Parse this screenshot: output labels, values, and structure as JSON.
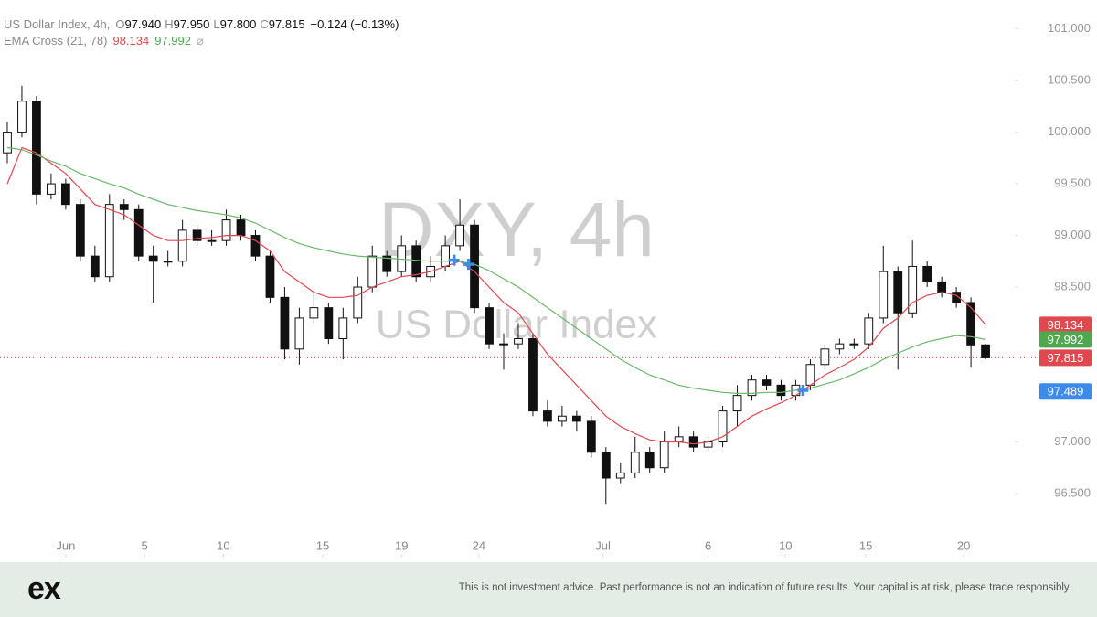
{
  "chart_data": {
    "type": "candlestick",
    "header": {
      "title": "US Dollar Index, 4h,",
      "o_label": "O",
      "open": "97.940",
      "h_label": "H",
      "high": "97.950",
      "l_label": "L",
      "low": "97.800",
      "c_label": "C",
      "close": "97.815",
      "change": "−0.124 (−0.13%)"
    },
    "indicator": {
      "name": "EMA Cross (21, 78)",
      "symbol": "⌀"
    },
    "watermark": {
      "symbol": "DXY, 4h",
      "name": "US Dollar Index"
    },
    "xlim": [
      -0.5,
      69
    ],
    "xticks": [
      {
        "value": 4.0,
        "label": "Jun"
      },
      {
        "value": 9.4,
        "label": "5"
      },
      {
        "value": 14.8,
        "label": "10"
      },
      {
        "value": 21.6,
        "label": "15"
      },
      {
        "value": 27.0,
        "label": "19"
      },
      {
        "value": 32.3,
        "label": "24"
      },
      {
        "value": 40.8,
        "label": "Jul"
      },
      {
        "value": 48.0,
        "label": "6"
      },
      {
        "value": 53.3,
        "label": "10"
      },
      {
        "value": 58.8,
        "label": "15"
      },
      {
        "value": 65.5,
        "label": "20"
      }
    ],
    "ylim": [
      95.88,
      101.28
    ],
    "yticks": [
      {
        "value": 96.5,
        "label": "96.500"
      },
      {
        "value": 97,
        "label": "97.000"
      },
      {
        "value": 98.5,
        "label": "98.500"
      },
      {
        "value": 99,
        "label": "99.000"
      },
      {
        "value": 99.5,
        "label": "99.500"
      },
      {
        "value": 100,
        "label": "100.000"
      },
      {
        "value": 100.5,
        "label": "100.500"
      },
      {
        "value": 101,
        "label": "101.000"
      }
    ],
    "up_color": "#ffffff",
    "down_color": "#111111",
    "ohlc": {
      "open": [
        99.8,
        100.0,
        100.3,
        99.4,
        99.5,
        99.3,
        98.8,
        98.6,
        99.3,
        99.25,
        98.8,
        98.75,
        98.75,
        99.05,
        98.95,
        98.95,
        99.15,
        99.0,
        98.8,
        98.4,
        97.9,
        98.2,
        98.3,
        98.0,
        98.2,
        98.5,
        98.8,
        98.65,
        98.9,
        98.6,
        98.7,
        98.9,
        99.1,
        98.3,
        97.95,
        97.95,
        98.0,
        97.3,
        97.2,
        97.25,
        97.2,
        96.9,
        96.65,
        96.7,
        96.9,
        96.75,
        97.0,
        97.05,
        96.95,
        97.0,
        97.3,
        97.45,
        97.6,
        97.55,
        97.45,
        97.55,
        97.75,
        97.9,
        97.95,
        97.95,
        98.2,
        98.65,
        98.25,
        98.7,
        98.55,
        98.45,
        98.35,
        97.94
      ],
      "high": [
        100.1,
        100.45,
        100.35,
        99.6,
        99.55,
        99.35,
        98.9,
        99.4,
        99.35,
        99.3,
        98.9,
        98.85,
        99.15,
        99.1,
        99.05,
        99.25,
        99.2,
        99.05,
        98.85,
        98.5,
        98.3,
        98.45,
        98.35,
        98.3,
        98.6,
        98.9,
        98.85,
        99.0,
        98.95,
        98.8,
        99.0,
        99.35,
        99.15,
        98.35,
        98.05,
        98.15,
        98.05,
        97.4,
        97.35,
        97.3,
        97.25,
        96.95,
        96.8,
        97.05,
        96.95,
        97.1,
        97.15,
        97.1,
        97.05,
        97.35,
        97.55,
        97.65,
        97.65,
        97.6,
        97.6,
        97.8,
        97.95,
        98.0,
        98.0,
        98.25,
        98.9,
        98.7,
        98.95,
        98.75,
        98.6,
        98.5,
        98.4,
        97.95
      ],
      "low": [
        99.7,
        99.95,
        99.3,
        99.35,
        99.25,
        98.75,
        98.55,
        98.55,
        99.15,
        98.75,
        98.35,
        98.7,
        98.7,
        98.9,
        98.9,
        98.9,
        98.95,
        98.75,
        98.35,
        97.8,
        97.75,
        98.15,
        97.95,
        97.8,
        98.15,
        98.45,
        98.6,
        98.6,
        98.55,
        98.55,
        98.65,
        98.85,
        98.25,
        97.9,
        97.7,
        97.9,
        97.25,
        97.15,
        97.15,
        97.1,
        96.85,
        96.4,
        96.6,
        96.65,
        96.7,
        96.7,
        96.95,
        96.9,
        96.9,
        96.95,
        97.15,
        97.4,
        97.5,
        97.4,
        97.4,
        97.5,
        97.7,
        97.85,
        97.9,
        97.9,
        98.15,
        97.7,
        98.2,
        98.5,
        98.4,
        98.3,
        97.72,
        97.8
      ],
      "close": [
        100.0,
        100.3,
        99.4,
        99.5,
        99.3,
        98.8,
        98.6,
        99.3,
        99.25,
        98.8,
        98.75,
        98.75,
        99.05,
        98.95,
        98.95,
        99.15,
        99.0,
        98.8,
        98.4,
        97.9,
        98.2,
        98.3,
        98.0,
        98.2,
        98.5,
        98.8,
        98.65,
        98.9,
        98.6,
        98.7,
        98.9,
        99.1,
        98.3,
        97.95,
        97.95,
        98.0,
        97.3,
        97.2,
        97.25,
        97.2,
        96.9,
        96.65,
        96.7,
        96.9,
        96.75,
        97.0,
        97.05,
        96.95,
        97.0,
        97.3,
        97.45,
        97.6,
        97.55,
        97.45,
        97.55,
        97.75,
        97.9,
        97.95,
        97.95,
        98.2,
        98.65,
        98.25,
        98.7,
        98.55,
        98.45,
        98.35,
        97.94,
        97.815
      ]
    },
    "ema_lines": [
      {
        "color": "#e0484f",
        "values": [
          99.5,
          99.85,
          99.8,
          99.7,
          99.6,
          99.45,
          99.3,
          99.25,
          99.2,
          99.1,
          99.0,
          98.95,
          98.95,
          98.97,
          98.98,
          99.0,
          99.0,
          98.95,
          98.85,
          98.65,
          98.55,
          98.45,
          98.4,
          98.4,
          98.42,
          98.5,
          98.55,
          98.6,
          98.62,
          98.65,
          98.7,
          98.75,
          98.65,
          98.5,
          98.35,
          98.25,
          98.05,
          97.85,
          97.7,
          97.55,
          97.4,
          97.25,
          97.15,
          97.08,
          97.02,
          97.0,
          97.0,
          96.98,
          97.0,
          97.05,
          97.15,
          97.25,
          97.32,
          97.38,
          97.45,
          97.55,
          97.65,
          97.72,
          97.8,
          97.92,
          98.1,
          98.2,
          98.35,
          98.42,
          98.45,
          98.42,
          98.3,
          98.134
        ]
      },
      {
        "color": "#6ab86a",
        "values": [
          99.85,
          99.83,
          99.78,
          99.72,
          99.67,
          99.6,
          99.55,
          99.5,
          99.46,
          99.4,
          99.35,
          99.3,
          99.27,
          99.24,
          99.22,
          99.2,
          99.17,
          99.12,
          99.05,
          98.98,
          98.92,
          98.88,
          98.85,
          98.82,
          98.8,
          98.79,
          98.78,
          98.77,
          98.76,
          98.75,
          98.75,
          98.75,
          98.72,
          98.66,
          98.58,
          98.5,
          98.4,
          98.3,
          98.2,
          98.1,
          98.0,
          97.9,
          97.8,
          97.72,
          97.65,
          97.6,
          97.55,
          97.52,
          97.5,
          97.48,
          97.47,
          97.47,
          97.48,
          97.48,
          97.5,
          97.52,
          97.56,
          97.6,
          97.66,
          97.72,
          97.8,
          97.86,
          97.92,
          97.97,
          98.0,
          98.03,
          98.02,
          97.992
        ]
      }
    ],
    "cross_markers": [
      {
        "x": 30.6,
        "y": 98.76
      },
      {
        "x": 31.6,
        "y": 98.72
      },
      {
        "x": 54.5,
        "y": 97.5
      }
    ],
    "cross_color": "#3d8be8",
    "last_price": 97.815,
    "last_price_color": "#e0484f",
    "price_labels": [
      {
        "value": 98.134,
        "color": "#e0484f"
      },
      {
        "value": 97.992,
        "color": "#4fa84f"
      },
      {
        "value": 97.815,
        "color": "#e0484f"
      },
      {
        "value": 97.489,
        "color": "#3d8be8"
      }
    ]
  },
  "footer": {
    "logo": "ex",
    "disclaimer": "This is not investment advice. Past performance is not an indication of future results. Your capital is at risk, please trade responsibly."
  }
}
